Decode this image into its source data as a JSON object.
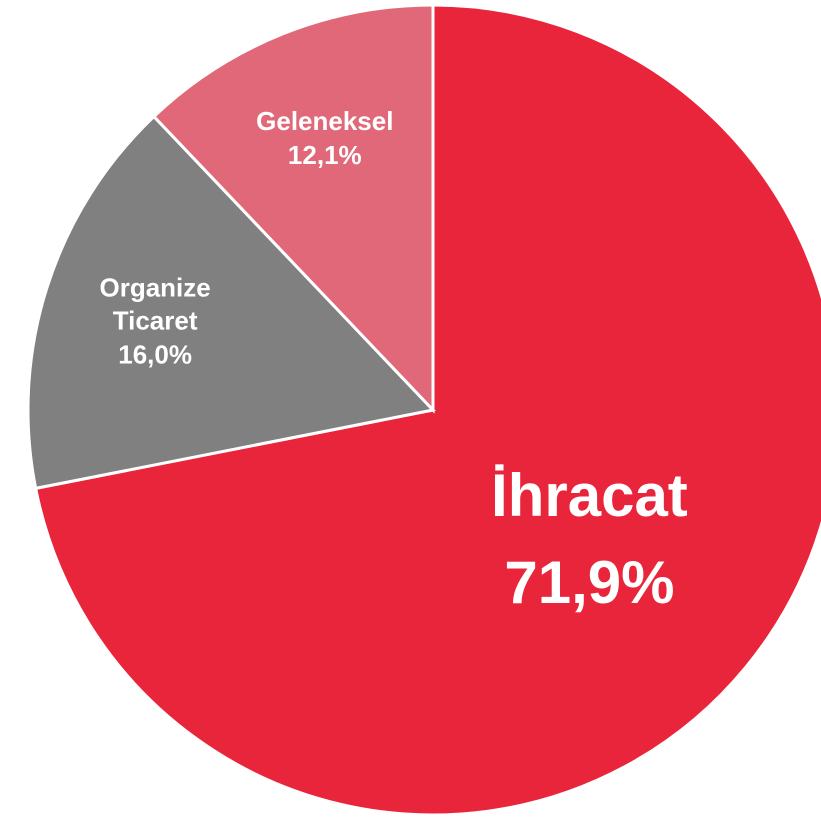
{
  "chart_data": {
    "type": "pie",
    "categories": [
      "İhracat",
      "Organize Ticaret",
      "Geleneksel"
    ],
    "values": [
      71.9,
      16.0,
      12.1
    ],
    "value_labels": [
      "71,9%",
      "16,0%",
      "12,1%"
    ],
    "colors": [
      "#e8253b",
      "#808080",
      "#e06878"
    ]
  }
}
